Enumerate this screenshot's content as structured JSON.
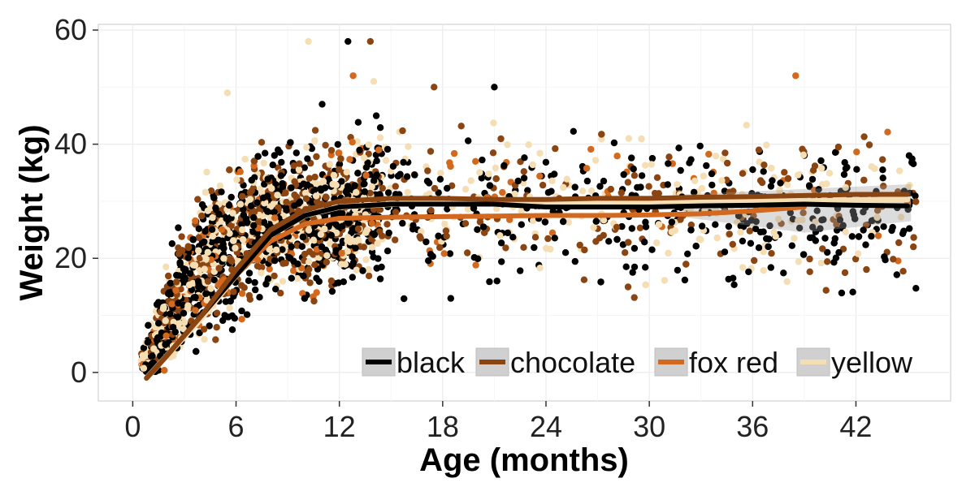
{
  "chart_data": {
    "type": "scatter",
    "xlabel": "Age (months)",
    "ylabel": "Weight (kg)",
    "xlim": [
      -2,
      47.5
    ],
    "ylim": [
      -5,
      61
    ],
    "x_ticks": [
      0,
      6,
      12,
      18,
      24,
      30,
      36,
      42
    ],
    "x_tick_labels": [
      "0",
      "6",
      "12",
      "18",
      "24",
      "30",
      "36",
      "42"
    ],
    "y_ticks": [
      0,
      20,
      40,
      60
    ],
    "y_tick_labels": [
      "0",
      "20",
      "40",
      "60"
    ],
    "grid": true,
    "legend_position": "bottom-right",
    "series": [
      {
        "name": "black",
        "color": "#000000",
        "trend": {
          "x": [
            0.8,
            2,
            4,
            6,
            8,
            10,
            12,
            15,
            18,
            21,
            24,
            27,
            30,
            33,
            36,
            39,
            42,
            45
          ],
          "y": [
            -1,
            3,
            10,
            17,
            24,
            27.5,
            29,
            29.5,
            29.5,
            29.5,
            29,
            29,
            29,
            29.2,
            29.3,
            29.5,
            29.3,
            29.2
          ]
        }
      },
      {
        "name": "chocolate",
        "color": "#8B4513",
        "trend": {
          "x": [
            0.8,
            2,
            4,
            6,
            8,
            10,
            12,
            15,
            18,
            21,
            24,
            27,
            30,
            33,
            36,
            39,
            42,
            45
          ],
          "y": [
            -1,
            3,
            10,
            18,
            25,
            28.5,
            30,
            30.5,
            30.5,
            30.3,
            30.3,
            30.5,
            30.5,
            30.7,
            30.8,
            31,
            31.2,
            31.2
          ]
        }
      },
      {
        "name": "fox red",
        "color": "#D2691E",
        "trend": {
          "x": [
            4,
            6,
            8,
            10,
            12,
            15,
            18,
            21,
            24,
            27,
            30,
            33,
            36,
            39
          ],
          "y": [
            10,
            17,
            23,
            26,
            27,
            27.2,
            27.3,
            27.4,
            27.5,
            27.5,
            27.6,
            27.8,
            28.3,
            29
          ]
        }
      },
      {
        "name": "yellow",
        "color": "#F5DEB3",
        "trend": {
          "x": [
            0.8,
            2,
            4,
            6,
            8,
            10,
            12,
            15,
            18,
            21,
            24,
            27,
            30,
            33,
            36,
            39,
            42,
            45
          ],
          "y": [
            -1,
            3,
            9.5,
            17,
            24,
            27.5,
            29,
            29.5,
            29.8,
            29.8,
            29.8,
            29.8,
            29.8,
            29.9,
            30,
            30,
            30.2,
            30.3
          ]
        }
      }
    ],
    "point_cloud": {
      "x_range": [
        0.5,
        45.5
      ],
      "plateau_center": 29,
      "plateau_spread": 6,
      "y_min_observed": 0,
      "y_max_observed": 58
    }
  }
}
